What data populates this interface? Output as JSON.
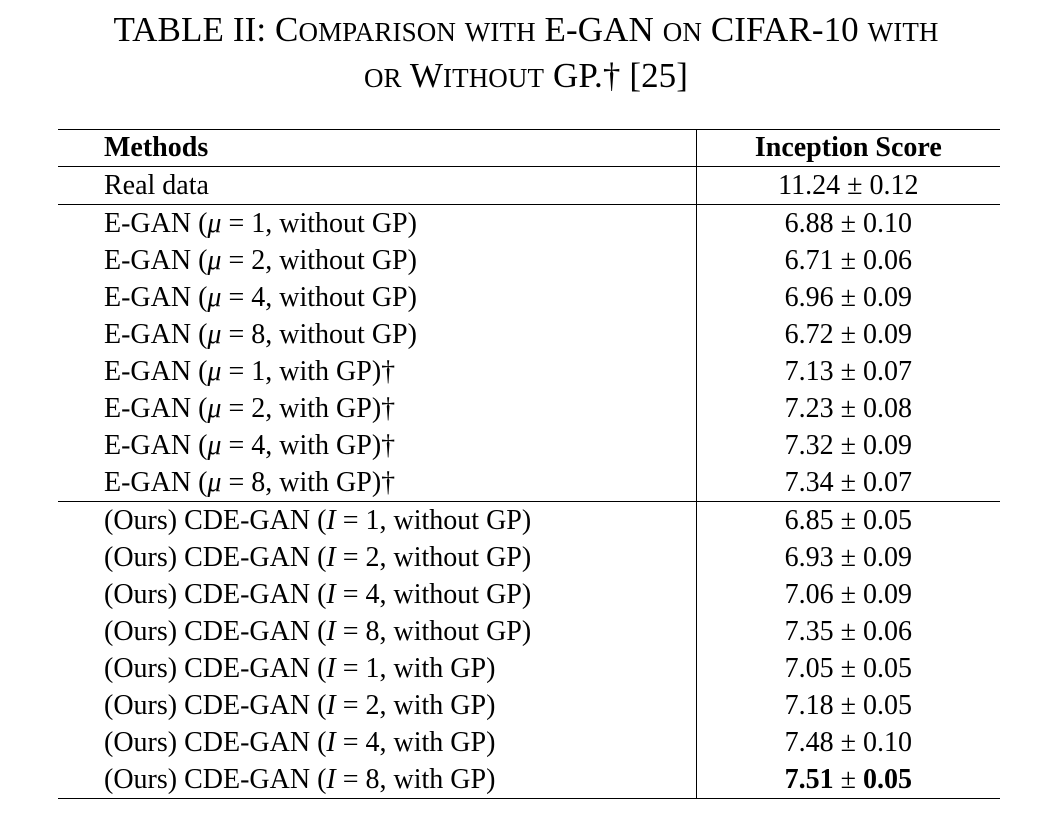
{
  "caption": {
    "line1": "TABLE II: Comparison with E-GAN on CIFAR-10 with",
    "line2": "or Without GP.† [25]"
  },
  "table": {
    "headers": [
      "Methods",
      "Inception Score"
    ],
    "groups": [
      [
        {
          "method": "Real data",
          "mean": "11.24",
          "std": "0.12"
        }
      ],
      [
        {
          "method": "E-GAN (μ = 1, without GP)",
          "mean": "6.88",
          "std": "0.10"
        },
        {
          "method": "E-GAN (μ = 2, without GP)",
          "mean": "6.71",
          "std": "0.06"
        },
        {
          "method": "E-GAN (μ = 4, without GP)",
          "mean": "6.96",
          "std": "0.09"
        },
        {
          "method": "E-GAN (μ = 8, without GP)",
          "mean": "6.72",
          "std": "0.09"
        },
        {
          "method": "E-GAN (μ = 1, with GP)†",
          "mean": "7.13",
          "std": "0.07"
        },
        {
          "method": "E-GAN (μ = 2, with GP)†",
          "mean": "7.23",
          "std": "0.08"
        },
        {
          "method": "E-GAN (μ = 4, with GP)†",
          "mean": "7.32",
          "std": "0.09"
        },
        {
          "method": "E-GAN (μ = 8, with GP)†",
          "mean": "7.34",
          "std": "0.07"
        }
      ],
      [
        {
          "method": "(Ours) CDE-GAN (I = 1, without GP)",
          "mean": "6.85",
          "std": "0.05"
        },
        {
          "method": "(Ours) CDE-GAN (I = 2, without GP)",
          "mean": "6.93",
          "std": "0.09"
        },
        {
          "method": "(Ours) CDE-GAN (I = 4, without GP)",
          "mean": "7.06",
          "std": "0.09"
        },
        {
          "method": "(Ours) CDE-GAN (I = 8, without GP)",
          "mean": "7.35",
          "std": "0.06"
        },
        {
          "method": "(Ours) CDE-GAN (I = 1, with GP)",
          "mean": "7.05",
          "std": "0.05"
        },
        {
          "method": "(Ours) CDE-GAN (I = 2, with GP)",
          "mean": "7.18",
          "std": "0.05"
        },
        {
          "method": "(Ours) CDE-GAN (I = 4, with GP)",
          "mean": "7.48",
          "std": "0.10"
        },
        {
          "method": "(Ours) CDE-GAN (I = 8, with GP)",
          "mean": "7.51",
          "std": "0.05",
          "bold": true
        }
      ]
    ]
  }
}
